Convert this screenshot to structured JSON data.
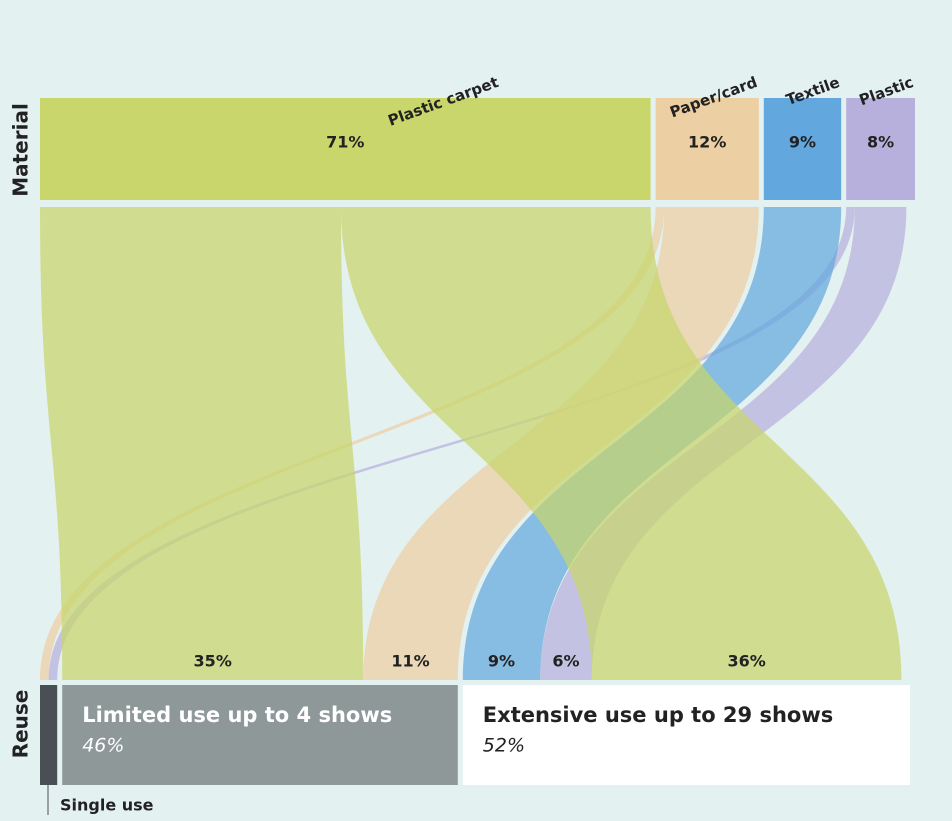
{
  "chart_data": {
    "type": "sankey",
    "axis_labels": {
      "source": "Material",
      "target": "Reuse"
    },
    "sources": [
      {
        "name": "Plastic carpet",
        "value": 71,
        "value_label": "71%",
        "color": "#c8d66b"
      },
      {
        "name": "Paper/card",
        "value": 12,
        "value_label": "12%",
        "color": "#eccfa3"
      },
      {
        "name": "Textile",
        "value": 9,
        "value_label": "9%",
        "color": "#62a8de"
      },
      {
        "name": "Plastic",
        "value": 8,
        "value_label": "8%",
        "color": "#b7b0dc"
      }
    ],
    "targets": [
      {
        "name": "Single use",
        "value": 2,
        "color": "#4a4f55"
      },
      {
        "name": "Limited use up to 4 shows",
        "value": 46,
        "value_label": "46%",
        "color": "#8e9898"
      },
      {
        "name": "Extensive use up to 29 shows",
        "value": 52,
        "value_label": "52%",
        "color": "#ffffff"
      }
    ],
    "flows": [
      {
        "source": 1,
        "target": 0,
        "value": 1
      },
      {
        "source": 3,
        "target": 0,
        "value": 1
      },
      {
        "source": 0,
        "target": 1,
        "value": 35,
        "value_label": "35%"
      },
      {
        "source": 1,
        "target": 1,
        "value": 11,
        "value_label": "11%"
      },
      {
        "source": 2,
        "target": 2,
        "value": 9,
        "value_label": "9%"
      },
      {
        "source": 3,
        "target": 2,
        "value": 6,
        "value_label": "6%"
      },
      {
        "source": 0,
        "target": 2,
        "value": 36,
        "value_label": "36%"
      }
    ]
  }
}
